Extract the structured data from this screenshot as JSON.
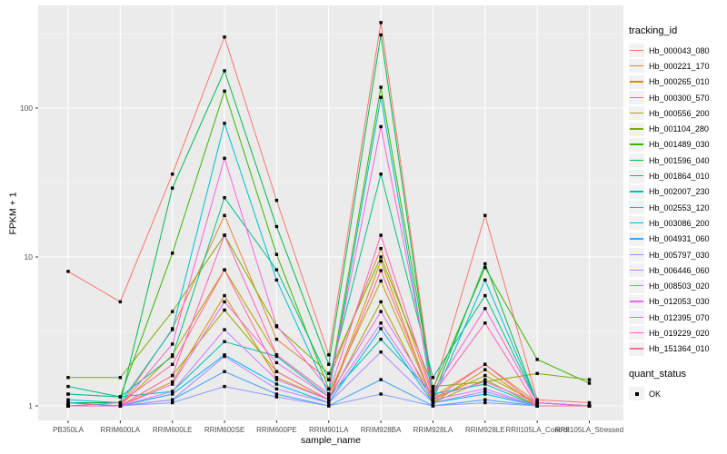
{
  "chart_data": {
    "type": "line",
    "xlabel": "sample_name",
    "ylabel": "FPKM + 1",
    "y_scale": "log10",
    "y_ticks": [
      1,
      10,
      100
    ],
    "y_minor_gridlines": [
      3.162,
      31.623,
      316.228
    ],
    "ylim": [
      0.93,
      490
    ],
    "grid": true,
    "legend_position": "right",
    "legend_title": "tracking_id",
    "legend2_title": "quant_status",
    "legend2_items": [
      {
        "label": "OK"
      }
    ],
    "point_color": "#000000",
    "panel_bg": "#EBEBEB",
    "grid_color": "#FFFFFF",
    "tick_label_color": "#4D4D4D",
    "categories": [
      "PB350LA",
      "RRIM600LA",
      "RRIM600LE",
      "RRIM600SE",
      "RRIM600PE",
      "RRIM901LA",
      "RRIM928BA",
      "RRIM928LA",
      "RRIM928LE",
      "RRII105LA_Control",
      "RRII105LA_Stressed"
    ],
    "series": [
      {
        "name": "Hb_000043_080",
        "color": "#F8766D",
        "values": [
          8,
          5,
          36,
          300,
          24,
          2.2,
          375,
          1.25,
          19,
          1.1,
          1.05
        ]
      },
      {
        "name": "Hb_000221_170",
        "color": "#EA8331",
        "values": [
          1,
          1,
          3.3,
          19,
          2.8,
          1.5,
          11.4,
          1.15,
          1.9,
          1.05,
          1
        ]
      },
      {
        "name": "Hb_000265_010",
        "color": "#D89000",
        "values": [
          1,
          1,
          1.45,
          5.5,
          1.55,
          1.1,
          9.4,
          1.05,
          1.75,
          1,
          1
        ]
      },
      {
        "name": "Hb_000300_570",
        "color": "#C09B00",
        "values": [
          1.05,
          1,
          2.2,
          8.2,
          2.2,
          1.2,
          6.9,
          1.1,
          1.6,
          1.05,
          1
        ]
      },
      {
        "name": "Hb_000556_200",
        "color": "#A3A500",
        "values": [
          1,
          1,
          1.6,
          4.4,
          1.7,
          1.1,
          5,
          1.05,
          1.5,
          1,
          1
        ]
      },
      {
        "name": "Hb_001104_280",
        "color": "#7CAE00",
        "values": [
          1.55,
          1.55,
          4.3,
          14,
          3.4,
          1.65,
          10,
          1.35,
          1.45,
          1.65,
          1.5
        ]
      },
      {
        "name": "Hb_001489_030",
        "color": "#39B600",
        "values": [
          1.2,
          1.15,
          10.6,
          130,
          10.4,
          1.3,
          138,
          1.3,
          8.5,
          2.05,
          1.42
        ]
      },
      {
        "name": "Hb_001596_040",
        "color": "#00BB4E",
        "values": [
          1.05,
          1.05,
          29,
          178,
          16,
          1.9,
          310,
          1.15,
          9,
          1.05,
          1
        ]
      },
      {
        "name": "Hb_001864_010",
        "color": "#00C087",
        "values": [
          1.35,
          1.15,
          2.15,
          25,
          8.2,
          1.5,
          36,
          1.55,
          5.5,
          1.05,
          1
        ]
      },
      {
        "name": "Hb_002007_230",
        "color": "#00C0B2",
        "values": [
          1.2,
          1.15,
          1.25,
          2.7,
          2.15,
          1.15,
          2.8,
          1.2,
          1.4,
          1,
          1
        ]
      },
      {
        "name": "Hb_002553_120",
        "color": "#00BDD3",
        "values": [
          1.1,
          1.05,
          3.25,
          79,
          7,
          1.2,
          118,
          1.1,
          7,
          1.05,
          1
        ]
      },
      {
        "name": "Hb_003086_200",
        "color": "#00B4EF",
        "values": [
          1.05,
          1,
          1.2,
          2.2,
          1.4,
          1.05,
          3.3,
          1.05,
          1.2,
          1,
          1
        ]
      },
      {
        "name": "Hb_004931_060",
        "color": "#3FA2FF",
        "values": [
          1,
          1,
          1.1,
          1.7,
          1.2,
          1,
          1.5,
          1,
          1.1,
          1,
          1
        ]
      },
      {
        "name": "Hb_005797_030",
        "color": "#8C9BFF",
        "values": [
          1,
          1,
          1.05,
          1.35,
          1.15,
          1,
          1.2,
          1,
          1.05,
          1,
          1
        ]
      },
      {
        "name": "Hb_006446_060",
        "color": "#AE87FF",
        "values": [
          1,
          1,
          1.1,
          2.15,
          1.3,
          1.05,
          2.3,
          1.05,
          1.25,
          1,
          1
        ]
      },
      {
        "name": "Hb_008503_020",
        "color": "#D277FF",
        "values": [
          1,
          1,
          1.25,
          3.25,
          1.5,
          1.1,
          3.6,
          1.1,
          1.3,
          1,
          1
        ]
      },
      {
        "name": "Hb_012053_030",
        "color": "#EE6AF0",
        "values": [
          1,
          1,
          1.4,
          5,
          1.95,
          1.15,
          4.3,
          1.15,
          1.45,
          1.05,
          1
        ]
      },
      {
        "name": "Hb_012395_070",
        "color": "#FA62DB",
        "values": [
          1,
          1,
          2.6,
          46,
          3.45,
          1.3,
          75,
          1.25,
          4.5,
          1.05,
          1
        ]
      },
      {
        "name": "Hb_019229_020",
        "color": "#FF61BB",
        "values": [
          1,
          1,
          1.6,
          14,
          2.2,
          1.2,
          14,
          1.2,
          3.6,
          1,
          1
        ]
      },
      {
        "name": "Hb_151364_010",
        "color": "#FF6B94",
        "values": [
          1,
          1.05,
          1.9,
          8.2,
          1.7,
          1.1,
          8.1,
          1.1,
          1.9,
          1,
          1
        ]
      }
    ]
  }
}
